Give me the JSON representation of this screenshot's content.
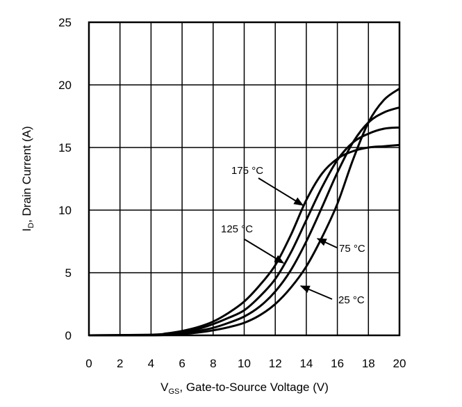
{
  "chart_data": {
    "type": "line",
    "title": "",
    "xlabel": {
      "main": "V",
      "sub": "GS",
      "rest": ", Gate-to-Source Voltage (V)"
    },
    "ylabel": {
      "main": "I",
      "sub": "D",
      "rest": ", Drain Current (A)"
    },
    "xlim": [
      0,
      20
    ],
    "ylim": [
      0,
      25
    ],
    "xticks": [
      "0",
      "2",
      "4",
      "6",
      "8",
      "10",
      "12",
      "14",
      "16",
      "18",
      "20"
    ],
    "yticks": [
      "0",
      "5",
      "10",
      "15",
      "20",
      "25"
    ],
    "grid": true,
    "series": [
      {
        "name": "175 °C",
        "x": [
          0,
          4,
          5,
          6,
          7,
          8,
          9,
          10,
          11,
          12,
          13,
          14,
          15,
          16,
          17,
          18,
          19,
          20
        ],
        "y": [
          0,
          0.05,
          0.15,
          0.35,
          0.65,
          1.1,
          1.8,
          2.7,
          4.0,
          5.6,
          8.0,
          10.8,
          12.9,
          14.1,
          14.7,
          15.0,
          15.1,
          15.2
        ]
      },
      {
        "name": "125 °C",
        "x": [
          0,
          4,
          5,
          6,
          7,
          8,
          9,
          10,
          11,
          12,
          13,
          14,
          15,
          16,
          17,
          18,
          19,
          20
        ],
        "y": [
          0,
          0.03,
          0.1,
          0.25,
          0.5,
          0.9,
          1.4,
          2.0,
          3.1,
          4.5,
          6.6,
          9.2,
          11.8,
          14.0,
          15.4,
          16.1,
          16.5,
          16.6
        ]
      },
      {
        "name": "75 °C",
        "x": [
          0,
          4,
          5,
          6,
          7,
          8,
          9,
          10,
          11,
          12,
          13,
          14,
          15,
          16,
          17,
          18,
          19,
          20
        ],
        "y": [
          0,
          0.02,
          0.07,
          0.18,
          0.35,
          0.6,
          1.0,
          1.5,
          2.3,
          3.5,
          5.2,
          7.5,
          10.2,
          13.0,
          15.4,
          17.0,
          17.8,
          18.2
        ]
      },
      {
        "name": "25 °C",
        "x": [
          0,
          4,
          5,
          6,
          7,
          8,
          9,
          10,
          11,
          12,
          13,
          14,
          15,
          16,
          17,
          18,
          19,
          20
        ],
        "y": [
          0,
          0.01,
          0.04,
          0.1,
          0.22,
          0.4,
          0.65,
          1.0,
          1.6,
          2.5,
          3.8,
          5.5,
          7.8,
          10.5,
          14.0,
          17.0,
          18.8,
          19.7
        ]
      }
    ],
    "annotations": [
      "175 °C",
      "125 °C",
      "75 °C",
      "25 °C"
    ]
  }
}
